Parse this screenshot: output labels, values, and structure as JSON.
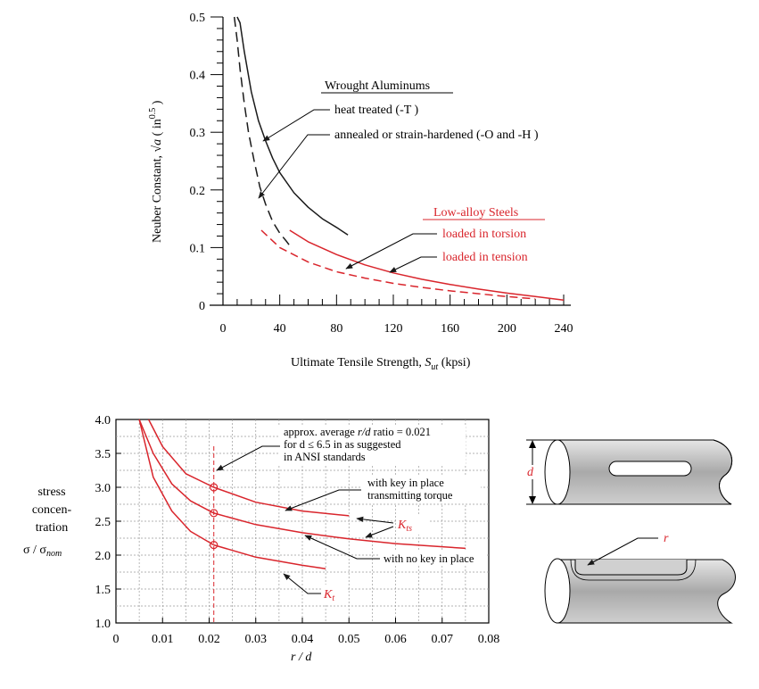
{
  "colors": {
    "black": "#1a1a1a",
    "red": "#d9252c",
    "grid": "#9a9a9a",
    "shaft": "#b8b8b8"
  },
  "chart_data": [
    {
      "type": "line",
      "ylabel_prefix": "Neuber Constant, ",
      "ylabel_sqrt": "√a",
      "ylabel_unit_open": " ( in",
      "ylabel_exp": "0.5",
      "ylabel_unit_close": " )",
      "xlabel_main": "Ultimate Tensile Strength, ",
      "xlabel_var": "S",
      "xlabel_sub": "ut",
      "xlabel_unit": " (kpsi)",
      "xlim": [
        0,
        240
      ],
      "ylim": [
        0,
        0.5
      ],
      "x_ticks": [
        "0",
        "40",
        "80",
        "120",
        "160",
        "200",
        "240"
      ],
      "y_ticks": [
        "0",
        "0.1",
        "0.2",
        "0.3",
        "0.4",
        "0.5"
      ],
      "groups": [
        {
          "title": "Wrought Aluminums",
          "color": "black"
        },
        {
          "title": "Low-alloy Steels",
          "color": "red"
        }
      ],
      "series": [
        {
          "name": "heat treated (-T )",
          "group": "Wrought Aluminums",
          "style": "solid",
          "color": "black",
          "x": [
            10,
            12,
            15,
            20,
            25,
            30,
            35,
            40,
            50,
            60,
            70,
            80,
            88
          ],
          "y": [
            0.5,
            0.49,
            0.44,
            0.37,
            0.32,
            0.285,
            0.255,
            0.23,
            0.195,
            0.17,
            0.15,
            0.135,
            0.122
          ]
        },
        {
          "name": "annealed or strain-hardened (-O and -H )",
          "group": "Wrought Aluminums",
          "style": "dashed",
          "color": "black",
          "x": [
            8,
            10,
            12,
            15,
            18,
            22,
            26,
            30,
            35,
            40,
            45,
            48
          ],
          "y": [
            0.5,
            0.46,
            0.41,
            0.35,
            0.3,
            0.25,
            0.205,
            0.175,
            0.145,
            0.125,
            0.11,
            0.1
          ]
        },
        {
          "name": "loaded in torsion",
          "group": "Low-alloy Steels",
          "style": "dashed",
          "color": "red",
          "x": [
            27,
            40,
            60,
            80,
            100,
            120,
            140,
            160,
            180,
            200,
            220
          ],
          "y": [
            0.13,
            0.1,
            0.075,
            0.058,
            0.047,
            0.038,
            0.031,
            0.025,
            0.02,
            0.015,
            0.011
          ]
        },
        {
          "name": "loaded in tension",
          "group": "Low-alloy Steels",
          "style": "solid",
          "color": "red",
          "x": [
            47,
            60,
            80,
            100,
            120,
            140,
            160,
            180,
            200,
            220,
            240
          ],
          "y": [
            0.13,
            0.11,
            0.088,
            0.07,
            0.056,
            0.045,
            0.036,
            0.028,
            0.021,
            0.015,
            0.009
          ]
        }
      ]
    },
    {
      "type": "line",
      "xlabel_var": "r / d",
      "ylabel_lines": [
        "stress",
        "concen-",
        "tration"
      ],
      "ylabel_sigma": "σ / σ",
      "ylabel_sub": "nom",
      "xlim": [
        0,
        0.08
      ],
      "ylim": [
        1.0,
        4.0
      ],
      "x_ticks": [
        "0",
        "0.01",
        "0.02",
        "0.03",
        "0.04",
        "0.05",
        "0.06",
        "0.07",
        "0.08"
      ],
      "y_ticks": [
        "1.0",
        "1.5",
        "2.0",
        "2.5",
        "3.0",
        "3.5",
        "4.0"
      ],
      "series": [
        {
          "name": "K_ts with key in place transmitting torque",
          "color": "red",
          "x": [
            0.007,
            0.01,
            0.015,
            0.021,
            0.03,
            0.04,
            0.05
          ],
          "y": [
            4.0,
            3.6,
            3.2,
            3.0,
            2.78,
            2.65,
            2.58
          ]
        },
        {
          "name": "K_ts with no key in place",
          "color": "red",
          "x": [
            0.005,
            0.008,
            0.012,
            0.016,
            0.021,
            0.03,
            0.04,
            0.05,
            0.06,
            0.075
          ],
          "y": [
            4.0,
            3.5,
            3.05,
            2.8,
            2.62,
            2.45,
            2.33,
            2.24,
            2.17,
            2.1
          ]
        },
        {
          "name": "K_t",
          "color": "red",
          "x": [
            0.005,
            0.008,
            0.012,
            0.016,
            0.021,
            0.03,
            0.04,
            0.045
          ],
          "y": [
            4.0,
            3.15,
            2.65,
            2.35,
            2.15,
            1.97,
            1.85,
            1.8
          ]
        }
      ],
      "markers": {
        "x": 0.021,
        "y": [
          3.0,
          2.62,
          2.15
        ]
      },
      "annotations": {
        "ratio_line1_pre": "approx. average ",
        "ratio_line1_var": "r/d",
        "ratio_line1_post": "  ratio = 0.021",
        "ratio_line2": "for d ≤ 6.5 in as suggested",
        "ratio_line3": "in ANSI standards",
        "key_line1": "with key in place",
        "key_line2": "transmitting torque",
        "nokey": "with no key in place",
        "kts_main": "K",
        "kts_sub": "ts",
        "kt_main": "K",
        "kt_sub": "t"
      }
    }
  ],
  "figures": {
    "diameter_label": "d",
    "radius_label": "r"
  }
}
